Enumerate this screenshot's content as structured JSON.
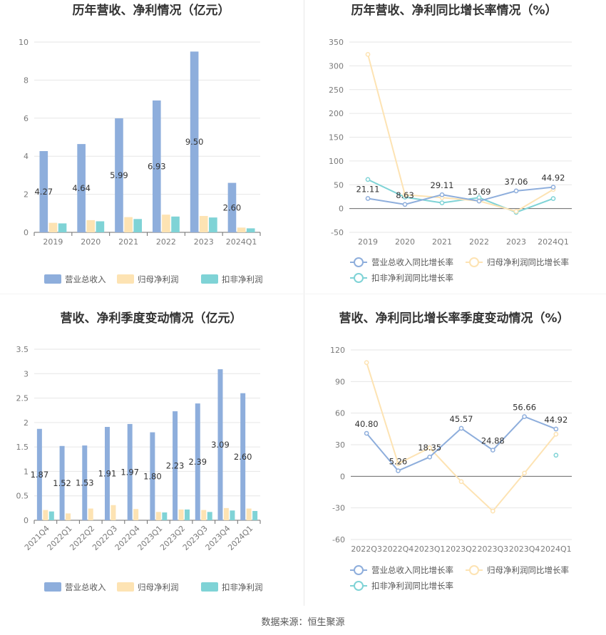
{
  "source": "数据来源：恒生聚源",
  "chart_data": [
    {
      "type": "bar",
      "title": "历年营收、净利情况（亿元）",
      "categories": [
        "2019",
        "2020",
        "2021",
        "2022",
        "2023",
        "2024Q1"
      ],
      "ylim": [
        0,
        10
      ],
      "yticks": [
        0,
        2,
        4,
        6,
        8,
        10
      ],
      "grid": true,
      "legend_position": "bottom",
      "series": [
        {
          "name": "营业总收入",
          "color": "#8eaedc",
          "values": [
            4.27,
            4.64,
            5.99,
            6.93,
            9.5,
            2.6
          ],
          "labels": [
            "4.27",
            "4.64",
            "5.99",
            "6.93",
            "9.50",
            "2.60"
          ]
        },
        {
          "name": "归母净利润",
          "color": "#fde3b3",
          "values": [
            0.5,
            0.64,
            0.8,
            0.93,
            0.86,
            0.25
          ]
        },
        {
          "name": "扣非净利润",
          "color": "#7fd3d6",
          "values": [
            0.47,
            0.58,
            0.7,
            0.83,
            0.78,
            0.21
          ]
        }
      ]
    },
    {
      "type": "line",
      "title": "历年营收、净利同比增长率情况（%）",
      "categories": [
        "2019",
        "2020",
        "2021",
        "2022",
        "2023",
        "2024Q1"
      ],
      "ylim": [
        -50,
        350
      ],
      "yticks": [
        -50,
        0,
        50,
        100,
        150,
        200,
        250,
        300,
        350
      ],
      "grid": true,
      "legend_position": "bottom",
      "series": [
        {
          "name": "营业总收入同比增长率",
          "color": "#8eaedc",
          "values": [
            21.11,
            8.63,
            29.11,
            15.69,
            37.06,
            44.92
          ],
          "labels": [
            "21.11",
            "8.63",
            "29.11",
            "15.69",
            "37.06",
            "44.92"
          ]
        },
        {
          "name": "归母净利润同比增长率",
          "color": "#fde3b3",
          "values": [
            324,
            29,
            23,
            16,
            -6,
            40
          ]
        },
        {
          "name": "扣非净利润同比增长率",
          "color": "#7fd3d6",
          "values": [
            61,
            24,
            12,
            23,
            -8,
            21
          ]
        }
      ]
    },
    {
      "type": "bar",
      "title": "营收、净利季度变动情况（亿元）",
      "categories": [
        "2021Q4",
        "2022Q1",
        "2022Q2",
        "2022Q3",
        "2022Q4",
        "2023Q1",
        "2023Q2",
        "2023Q3",
        "2023Q4",
        "2024Q1"
      ],
      "ylim": [
        0,
        3.5
      ],
      "yticks": [
        0,
        0.5,
        1,
        1.5,
        2,
        2.5,
        3,
        3.5
      ],
      "grid": true,
      "legend_position": "bottom",
      "series": [
        {
          "name": "营业总收入",
          "color": "#8eaedc",
          "values": [
            1.87,
            1.52,
            1.53,
            1.91,
            1.97,
            1.8,
            2.23,
            2.39,
            3.09,
            2.6
          ],
          "labels": [
            "1.87",
            "1.52",
            "1.53",
            "1.91",
            "1.97",
            "1.80",
            "2.23",
            "2.39",
            "3.09",
            "2.60"
          ]
        },
        {
          "name": "归母净利润",
          "color": "#fde3b3",
          "values": [
            0.21,
            0.14,
            0.24,
            0.31,
            0.23,
            0.17,
            0.22,
            0.21,
            0.25,
            0.24
          ]
        },
        {
          "name": "扣非净利润",
          "color": "#7fd3d6",
          "values": [
            0.18,
            null,
            null,
            null,
            null,
            0.16,
            0.22,
            0.17,
            0.2,
            0.19
          ]
        }
      ]
    },
    {
      "type": "line",
      "title": "营收、净利同比增长率季度变动情况（%）",
      "categories": [
        "2022Q3",
        "2022Q4",
        "2023Q1",
        "2023Q2",
        "2023Q3",
        "2023Q4",
        "2024Q1"
      ],
      "ylim": [
        -60,
        120
      ],
      "yticks": [
        -60,
        -30,
        0,
        30,
        60,
        90,
        120
      ],
      "grid": true,
      "legend_position": "bottom",
      "series": [
        {
          "name": "营业总收入同比增长率",
          "color": "#8eaedc",
          "values": [
            40.8,
            5.26,
            18.35,
            45.57,
            24.88,
            56.66,
            44.92
          ],
          "labels": [
            "40.80",
            "5.26",
            "18.35",
            "45.57",
            "24.88",
            "56.66",
            "44.92"
          ]
        },
        {
          "name": "归母净利润同比增长率",
          "color": "#fde3b3",
          "values": [
            108,
            12,
            27,
            -5,
            -33,
            3,
            40
          ]
        },
        {
          "name": "扣非净利润同比增长率",
          "color": "#7fd3d6",
          "values": [
            null,
            null,
            null,
            null,
            null,
            null,
            20
          ]
        }
      ]
    }
  ]
}
